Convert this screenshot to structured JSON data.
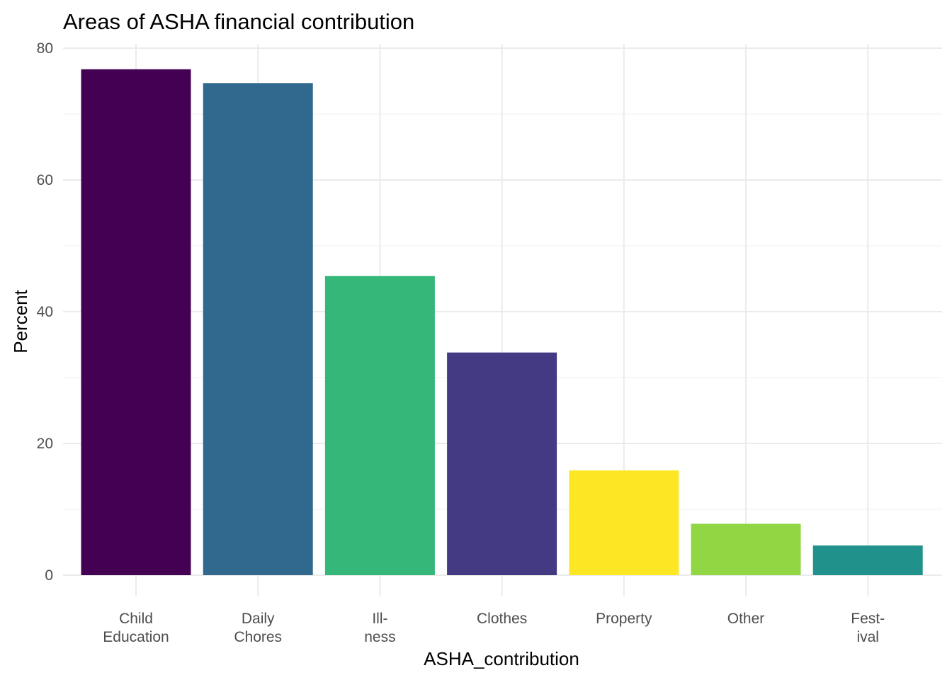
{
  "chart_data": {
    "type": "bar",
    "title": "Areas of ASHA financial contribution",
    "xlabel": "ASHA_contribution",
    "ylabel": "Percent",
    "categories": [
      [
        "Child",
        "Education"
      ],
      [
        "Daily",
        "Chores"
      ],
      [
        "Ill-",
        "ness"
      ],
      [
        "Clothes"
      ],
      [
        "Property"
      ],
      [
        "Other"
      ],
      [
        "Fest-",
        "ival"
      ]
    ],
    "values": [
      76.8,
      74.7,
      45.4,
      33.8,
      15.9,
      7.8,
      4.5
    ],
    "colors": [
      "#440154",
      "#31688e",
      "#35b779",
      "#443983",
      "#fde725",
      "#90d743",
      "#21918c"
    ],
    "ylim": [
      0,
      80
    ],
    "yticks": [
      0,
      20,
      40,
      60,
      80
    ],
    "grid": true,
    "legend": "none"
  }
}
